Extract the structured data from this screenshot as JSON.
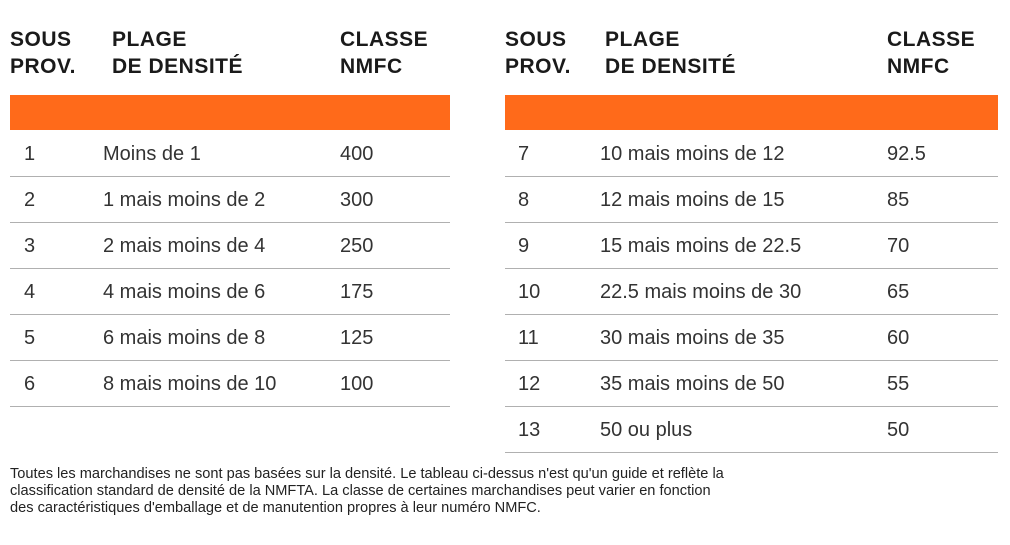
{
  "tables": [
    {
      "headers": [
        [
          "SOUS",
          "PROV."
        ],
        [
          "PLAGE",
          "DE DENSITÉ"
        ],
        [
          "CLASSE",
          "NMFC"
        ]
      ],
      "rows": [
        [
          "1",
          "Moins de 1",
          "400"
        ],
        [
          "2",
          "1 mais moins de 2",
          "300"
        ],
        [
          "3",
          "2 mais moins de 4",
          "250"
        ],
        [
          "4",
          "4 mais moins de 6",
          "175"
        ],
        [
          "5",
          "6 mais moins de 8",
          "125"
        ],
        [
          "6",
          "8 mais moins de 10",
          "100"
        ]
      ]
    },
    {
      "headers": [
        [
          "SOUS",
          "PROV."
        ],
        [
          "PLAGE",
          "DE DENSITÉ"
        ],
        [
          "CLASSE",
          "NMFC"
        ]
      ],
      "rows": [
        [
          "7",
          "10 mais moins de 12",
          "92.5"
        ],
        [
          "8",
          "12 mais moins de 15",
          "85"
        ],
        [
          "9",
          "15 mais moins de 22.5",
          "70"
        ],
        [
          "10",
          "22.5 mais moins de 30",
          "65"
        ],
        [
          "11",
          "30 mais moins de 35",
          "60"
        ],
        [
          "12",
          "35 mais moins de 50",
          "55"
        ],
        [
          "13",
          "50 ou plus",
          "50"
        ]
      ]
    }
  ],
  "footnote": [
    "Toutes les marchandises ne sont pas basées sur la densité. Le tableau ci-dessus n'est qu'un guide et reflète la",
    "classification standard de densité de la NMFTA. La classe de certaines marchandises peut varier en fonction",
    "des caractéristiques d'emballage et de manutention propres à leur numéro NMFC."
  ]
}
